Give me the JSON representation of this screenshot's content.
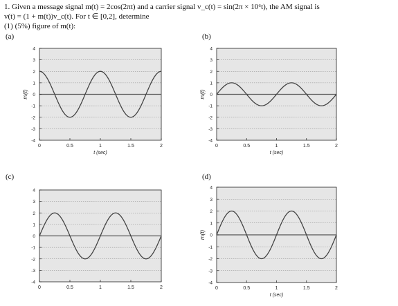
{
  "question": {
    "line1": "1. Given a message signal m(t) = 2cos(2πt) and a carrier signal v_c(t) = sin(2π × 10⁶t), the AM signal is",
    "line2": "v(t) = (1 + m(t))v_c(t). For t ∈ [0,2], determine",
    "line3": "(1) (5%) figure of m(t):"
  },
  "chart_data": [
    {
      "panel": "(a)",
      "type": "line",
      "x": [
        0,
        0.25,
        0.5,
        0.75,
        1,
        1.25,
        1.5,
        1.75,
        2
      ],
      "y": [
        2,
        0,
        -2,
        0,
        2,
        0,
        -2,
        0,
        2
      ],
      "xlabel": "t (sec)",
      "ylabel": "m(t)",
      "xlim": [
        0,
        2
      ],
      "ylim": [
        -4,
        4
      ],
      "xticks": [
        "0",
        "0.5",
        "1",
        "1.5",
        "2"
      ],
      "yticks": [
        "4",
        "3",
        "2",
        "1",
        "0",
        "-1",
        "-2",
        "-3",
        "-4"
      ],
      "grid": true
    },
    {
      "panel": "(b)",
      "type": "line",
      "x": [
        0,
        0.25,
        0.5,
        0.75,
        1,
        1.25,
        1.5,
        1.75,
        2
      ],
      "y": [
        0,
        1,
        0,
        -1,
        0,
        1,
        0,
        -1,
        0
      ],
      "xlabel": "t (sec)",
      "ylabel": "m(t)",
      "xlim": [
        0,
        2
      ],
      "ylim": [
        -4,
        4
      ],
      "xticks": [
        "0",
        "0.5",
        "1",
        "1.5",
        "2"
      ],
      "yticks": [
        "4",
        "3",
        "2",
        "1",
        "0",
        "-1",
        "-2",
        "-3",
        "-4"
      ],
      "grid": true
    },
    {
      "panel": "(c)",
      "type": "line",
      "x": [
        0,
        0.25,
        0.5,
        0.75,
        1,
        1.25,
        1.5,
        1.75,
        2
      ],
      "y": [
        0,
        2,
        0,
        -2,
        0,
        2,
        0,
        -2,
        0
      ],
      "xlabel": "",
      "ylabel": "",
      "xlim": [
        0,
        2
      ],
      "ylim": [
        -4,
        4
      ],
      "xticks": [
        "0",
        "0.5",
        "1",
        "1.5",
        "2"
      ],
      "yticks": [
        "4",
        "3",
        "2",
        "1",
        "0",
        "-1",
        "-2",
        "-3",
        "-4"
      ],
      "grid": true
    },
    {
      "panel": "(d)",
      "type": "line",
      "x": [
        0,
        0.25,
        0.5,
        0.75,
        1,
        1.25,
        1.5,
        1.75,
        2
      ],
      "y": [
        0,
        2,
        0,
        -2,
        0,
        2,
        0,
        -2,
        0
      ],
      "xlabel": "t (sec)",
      "ylabel": "m(t)",
      "xlim": [
        0,
        2
      ],
      "ylim": [
        -4,
        4
      ],
      "xticks": [
        "0",
        "0.5",
        "1",
        "1.5",
        "2"
      ],
      "yticks": [
        "4",
        "3",
        "2",
        "1",
        "0",
        "-1",
        "-2",
        "-3",
        "-4"
      ],
      "grid": true
    }
  ],
  "style": {
    "plot_bg": "#e6e6e6",
    "line_color": "#444444",
    "zero_line_color": "#555555"
  }
}
